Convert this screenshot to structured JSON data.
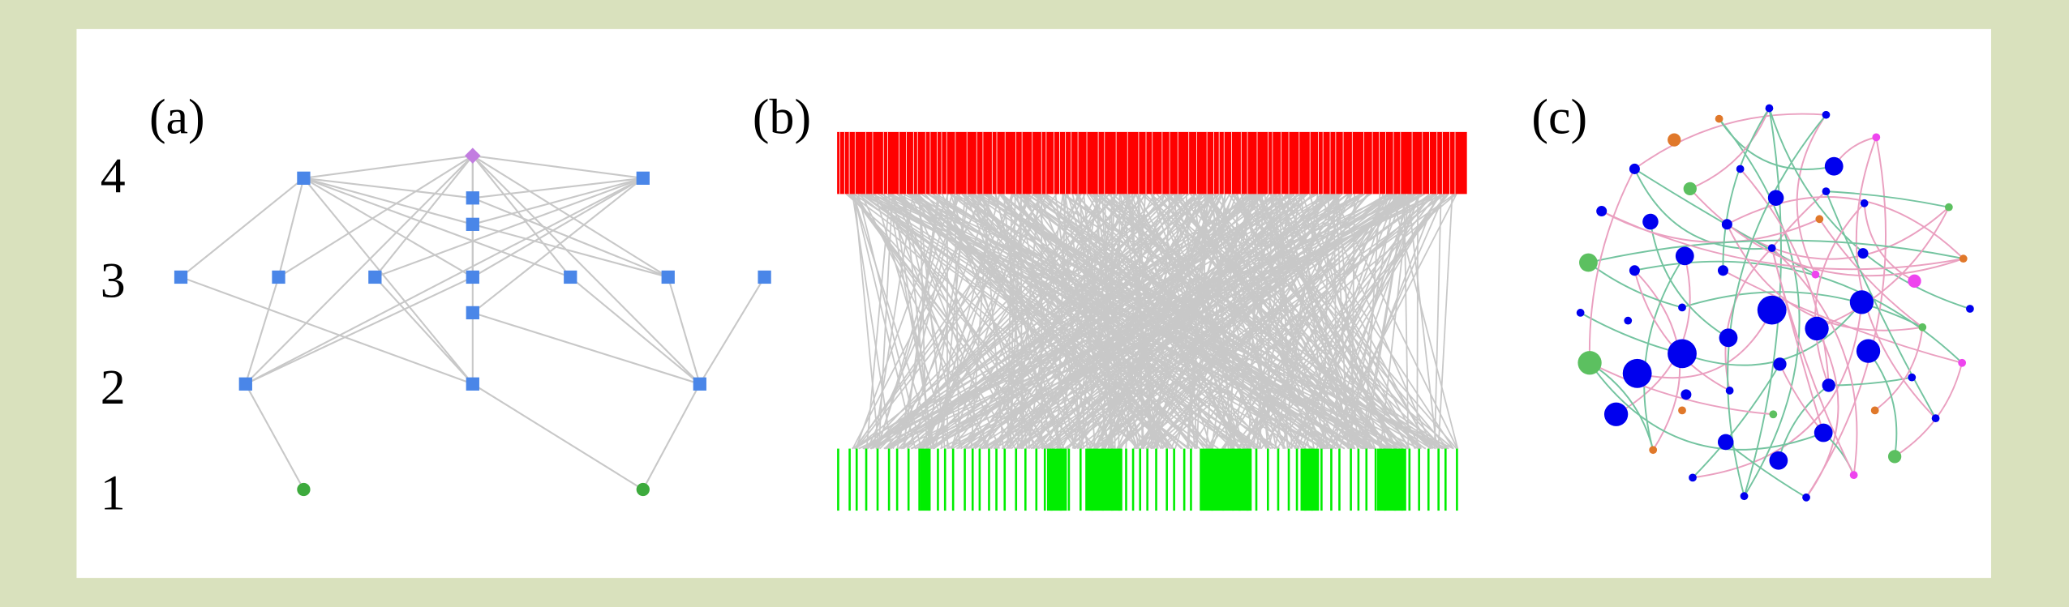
{
  "panels": [
    {
      "label": "(a)",
      "levels": [
        "4",
        "3",
        "2",
        "1"
      ]
    },
    {
      "label": "(b)"
    },
    {
      "label": "(c)"
    }
  ]
}
